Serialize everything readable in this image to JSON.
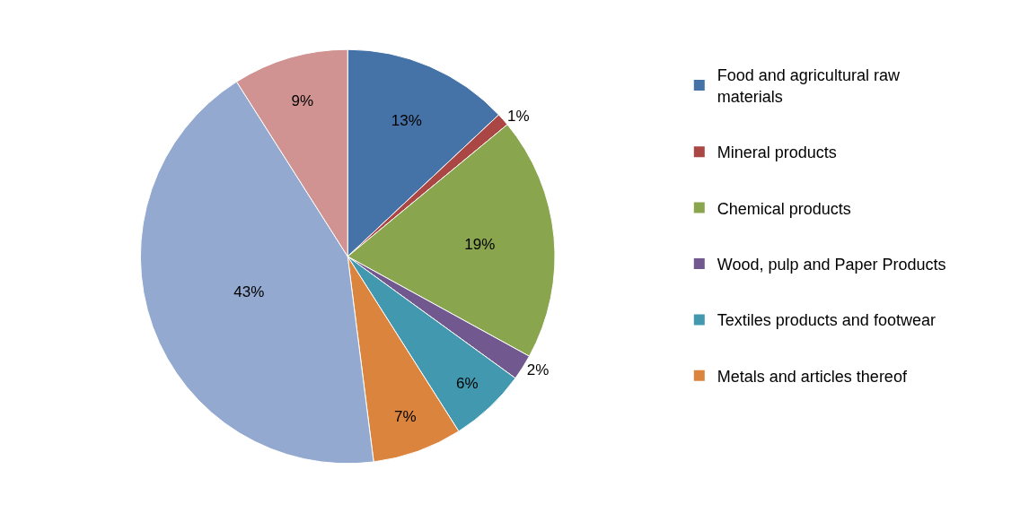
{
  "chart_data": {
    "type": "pie",
    "categories": [
      "Food and agricultural raw materials",
      "Mineral products",
      "Chemical products",
      "Wood, pulp and Paper Products",
      "Textiles products and footwear",
      "Metals and articles thereof",
      null,
      null
    ],
    "values": [
      13,
      1,
      19,
      2,
      6,
      7,
      43,
      9
    ],
    "colors": [
      "#4572a7",
      "#aa4643",
      "#89a54e",
      "#71588f",
      "#4198af",
      "#db843d",
      "#93a9cf",
      "#d19392"
    ],
    "value_labels": [
      "13%",
      "1%",
      "19%",
      "2%",
      "6%",
      "7%",
      "43%",
      "9%"
    ],
    "legend": "right"
  }
}
